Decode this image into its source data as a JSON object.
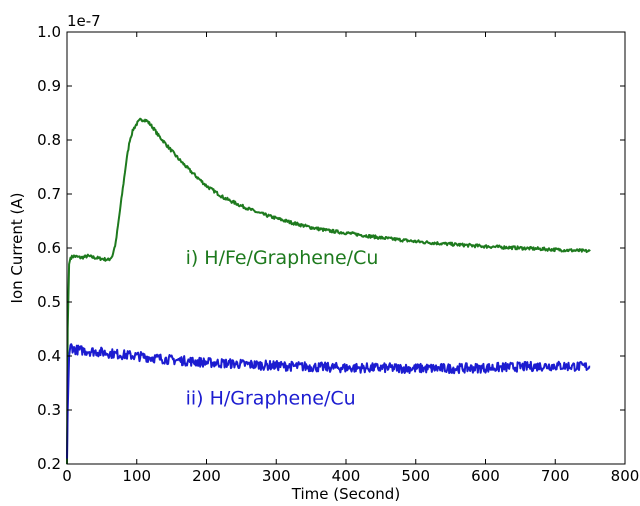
{
  "chart_data": {
    "type": "line",
    "xlabel": "Time (Second)",
    "ylabel": "Ion Current (A)",
    "offset_label": "1e-7",
    "xlim": [
      0,
      800
    ],
    "ylim": [
      0.2,
      1.0
    ],
    "x_ticks": [
      "0",
      "100",
      "200",
      "300",
      "400",
      "500",
      "600",
      "700",
      "800"
    ],
    "y_ticks": [
      "0.2",
      "0.3",
      "0.4",
      "0.5",
      "0.6",
      "0.7",
      "0.8",
      "0.9",
      "1.0"
    ],
    "grid": false,
    "series": [
      {
        "name": "i) H/Fe/Graphene/Cu",
        "color": "#1e7a1e",
        "x": [
          0,
          1,
          3,
          5,
          10,
          20,
          30,
          40,
          50,
          60,
          65,
          70,
          75,
          80,
          85,
          90,
          95,
          100,
          105,
          110,
          115,
          120,
          125,
          130,
          140,
          150,
          160,
          175,
          200,
          225,
          250,
          275,
          300,
          325,
          350,
          375,
          400,
          450,
          500,
          550,
          600,
          650,
          700,
          750
        ],
        "y": [
          0.2,
          0.45,
          0.57,
          0.582,
          0.585,
          0.582,
          0.585,
          0.582,
          0.58,
          0.578,
          0.585,
          0.61,
          0.66,
          0.71,
          0.76,
          0.8,
          0.82,
          0.83,
          0.837,
          0.838,
          0.835,
          0.828,
          0.82,
          0.81,
          0.795,
          0.78,
          0.765,
          0.745,
          0.715,
          0.693,
          0.678,
          0.665,
          0.655,
          0.646,
          0.638,
          0.632,
          0.628,
          0.619,
          0.612,
          0.607,
          0.603,
          0.6,
          0.597,
          0.594
        ]
      },
      {
        "name": "ii) H/Graphene/Cu",
        "color": "#1c1cd0",
        "x": [
          0,
          1,
          3,
          5,
          10,
          25,
          50,
          75,
          100,
          150,
          200,
          250,
          300,
          350,
          400,
          450,
          500,
          550,
          600,
          650,
          700,
          750
        ],
        "y": [
          0.21,
          0.3,
          0.4,
          0.42,
          0.412,
          0.41,
          0.407,
          0.403,
          0.4,
          0.393,
          0.388,
          0.385,
          0.382,
          0.38,
          0.378,
          0.378,
          0.377,
          0.377,
          0.378,
          0.38,
          0.382,
          0.38
        ]
      }
    ],
    "annotations": [
      {
        "text": "i) H/Fe/Graphene/Cu",
        "color": "#1e7a1e",
        "x": 170,
        "y": 0.57
      },
      {
        "text": "ii) H/Graphene/Cu",
        "color": "#1c1cd0",
        "x": 170,
        "y": 0.31
      }
    ]
  }
}
